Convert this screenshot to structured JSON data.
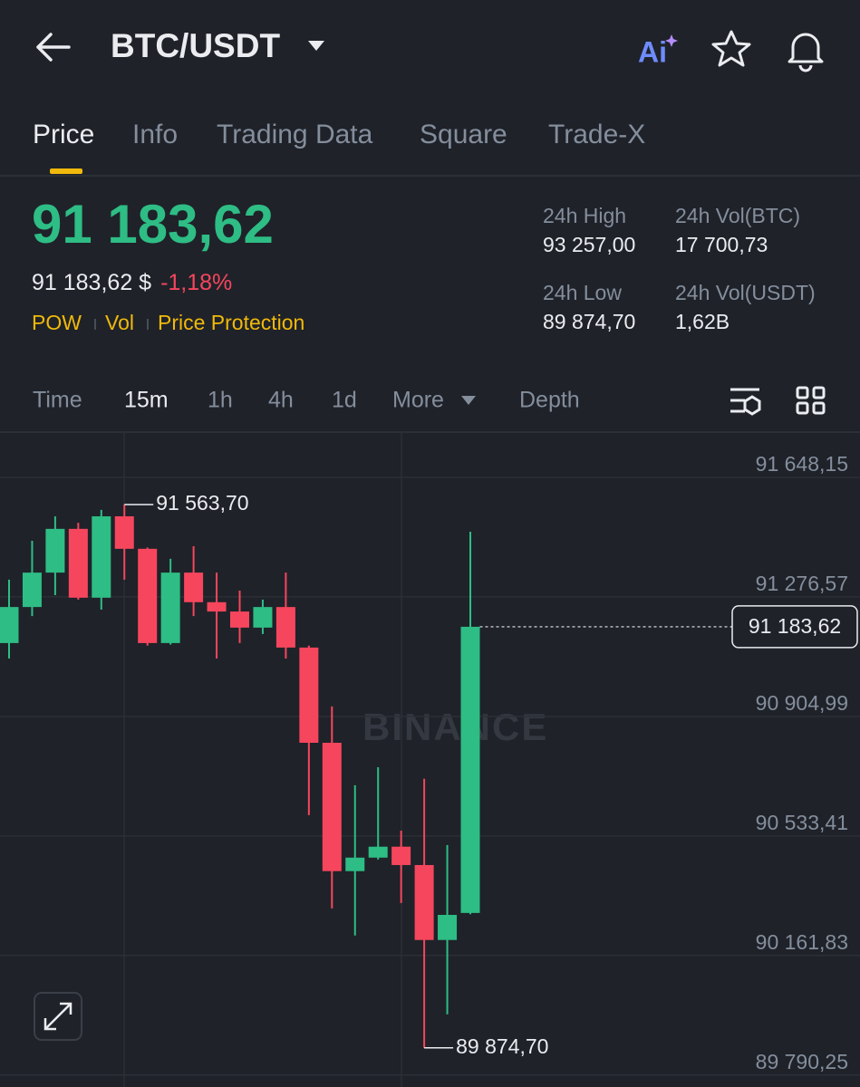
{
  "header": {
    "title": "BTC/USDT",
    "ai": "Ai"
  },
  "tabs": [
    "Price",
    "Info",
    "Trading Data",
    "Square",
    "Trade-X"
  ],
  "price": {
    "last": "91 183,62",
    "fiat": "91 183,62 $",
    "change": "-1,18%",
    "tags": [
      "POW",
      "Vol",
      "Price Protection"
    ]
  },
  "stats": [
    {
      "label": "24h High",
      "value": "93 257,00"
    },
    {
      "label": "24h Vol(BTC)",
      "value": "17 700,73"
    },
    {
      "label": "24h Low",
      "value": "89 874,70"
    },
    {
      "label": "24h Vol(USDT)",
      "value": "1,62B"
    }
  ],
  "intervals": [
    "Time",
    "15m",
    "1h",
    "4h",
    "1d",
    "More",
    "Depth"
  ],
  "chart_data": {
    "type": "candlestick",
    "watermark": "BINANCE",
    "up_color": "#2ebd85",
    "down_color": "#f6465d",
    "open": [
      91133,
      91245,
      91352,
      91488,
      91274,
      91527,
      91426,
      91133,
      91352,
      91260,
      91231,
      91181,
      91245,
      91119,
      90823,
      90424,
      90466,
      90500,
      90443,
      90210,
      90294
    ],
    "high": [
      91330,
      91451,
      91527,
      91507,
      91547,
      91563.7,
      91430,
      91395,
      91434,
      91352,
      91296,
      91268,
      91352,
      91125,
      90936,
      90691,
      90747,
      90550,
      90711,
      90505,
      91479
    ],
    "low": [
      91085,
      91217,
      91282,
      91268,
      91237,
      91330,
      91125,
      91128,
      91217,
      91085,
      91133,
      91161,
      91085,
      90598,
      90308,
      90224,
      90460,
      90325,
      89874.7,
      89979,
      90290
    ],
    "close": [
      91245,
      91352,
      91488,
      91274,
      91527,
      91426,
      91133,
      91352,
      91260,
      91231,
      91181,
      91245,
      91119,
      90823,
      90424,
      90466,
      90500,
      90443,
      90210,
      90288,
      91183.62
    ],
    "ylim": [
      89753,
      91786
    ],
    "yticks": [
      {
        "value": 91648.15,
        "label": "91 648,15"
      },
      {
        "value": 91276.57,
        "label": "91 276,57"
      },
      {
        "value": 90904.99,
        "label": "90 904,99"
      },
      {
        "value": 90533.41,
        "label": "90 533,41"
      },
      {
        "value": 90161.83,
        "label": "90 161,83"
      },
      {
        "value": 89790.25,
        "label": "89 790,25"
      }
    ],
    "high_marker": {
      "value": 91563.7,
      "label": "91 563,70"
    },
    "low_marker": {
      "value": 89874.7,
      "label": "89 874,70"
    },
    "last_marker": {
      "value": 91183.62,
      "label": "91 183,62"
    },
    "grid": true
  }
}
